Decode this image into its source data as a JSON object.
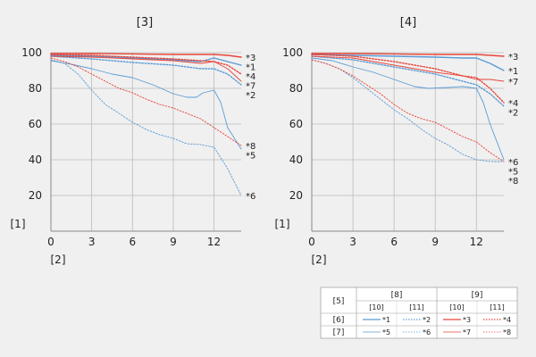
{
  "colors": {
    "blue": "#5b9bd5",
    "red": "#e8463a",
    "grid": "#bbbbbb",
    "axis": "#888888"
  },
  "chart_data": [
    {
      "type": "line",
      "title": "[3]",
      "xlabel": "[2]",
      "ylabel": "[1]",
      "xlim": [
        0,
        14
      ],
      "ylim": [
        0,
        100
      ],
      "xticks": [
        "0",
        "3",
        "6",
        "9",
        "12"
      ],
      "yticks": [
        "20",
        "40",
        "60",
        "80",
        "100"
      ],
      "grid": true,
      "series": [
        {
          "name": "*1",
          "color": "blue",
          "dash": false,
          "x": [
            0,
            3,
            6,
            9,
            11,
            12,
            12.5,
            14
          ],
          "y": [
            98.5,
            98,
            97,
            96,
            95,
            97,
            96,
            93
          ]
        },
        {
          "name": "*2",
          "color": "blue",
          "dash": true,
          "x": [
            0,
            3,
            6,
            9,
            11,
            12,
            13,
            14
          ],
          "y": [
            98,
            96.5,
            94.5,
            93,
            91,
            91,
            88,
            82
          ]
        },
        {
          "name": "*3",
          "color": "red",
          "dash": false,
          "x": [
            0,
            3,
            6,
            9,
            12,
            13,
            14
          ],
          "y": [
            99.5,
            99.5,
            99.3,
            99,
            99,
            98.5,
            97.5
          ]
        },
        {
          "name": "*4",
          "color": "red",
          "dash": true,
          "x": [
            0,
            3,
            6,
            9,
            12,
            13,
            14
          ],
          "y": [
            99,
            98.5,
            97.5,
            96.5,
            95,
            93,
            88
          ]
        },
        {
          "name": "*5",
          "color": "blue",
          "dash": false,
          "x": [
            0,
            1.5,
            3,
            4.5,
            6,
            7.5,
            9,
            10,
            10.7,
            11.2,
            12,
            12.5,
            13,
            14
          ],
          "y": [
            95.5,
            93.5,
            91,
            88,
            86,
            82,
            77,
            75,
            75,
            77.5,
            79,
            72,
            58,
            46
          ]
        },
        {
          "name": "*6",
          "color": "blue",
          "dash": true,
          "x": [
            0,
            1,
            2,
            3,
            4,
            5,
            6,
            7,
            8,
            9,
            10,
            11,
            12,
            13,
            14
          ],
          "y": [
            96,
            94,
            88,
            79,
            71,
            66,
            61,
            57,
            54,
            52,
            49,
            48.5,
            47,
            35,
            20
          ]
        },
        {
          "name": "*7",
          "color": "red",
          "dash": false,
          "x": [
            0,
            3,
            6,
            9,
            11,
            12,
            13,
            14
          ],
          "y": [
            98,
            97.5,
            96.5,
            95.5,
            94,
            95,
            91,
            84
          ]
        },
        {
          "name": "*8",
          "color": "red",
          "dash": true,
          "x": [
            0,
            1,
            2,
            3,
            4,
            5,
            6,
            7,
            8,
            9,
            10,
            11,
            12,
            13,
            14
          ],
          "y": [
            97,
            95,
            92,
            88,
            84,
            80,
            77.5,
            74,
            71,
            69,
            66,
            63,
            58,
            53,
            48
          ]
        }
      ],
      "end_labels": [
        "*3",
        "*1",
        "*4",
        "*7",
        "*2",
        "*8",
        "*5",
        "*6"
      ]
    },
    {
      "type": "line",
      "title": "[4]",
      "xlabel": "[2]",
      "ylabel": "[1]",
      "xlim": [
        0,
        14
      ],
      "ylim": [
        0,
        100
      ],
      "xticks": [
        "0",
        "3",
        "6",
        "9",
        "12"
      ],
      "yticks": [
        "20",
        "40",
        "60",
        "80",
        "100"
      ],
      "grid": true,
      "series": [
        {
          "name": "*1",
          "color": "blue",
          "dash": false,
          "x": [
            0,
            3,
            6,
            9,
            11,
            12,
            13,
            14
          ],
          "y": [
            99,
            98.5,
            98,
            97.5,
            97,
            97,
            94,
            90
          ]
        },
        {
          "name": "*2",
          "color": "blue",
          "dash": true,
          "x": [
            0,
            3,
            6,
            9,
            11,
            12,
            13,
            14
          ],
          "y": [
            98,
            96,
            92,
            88,
            84,
            82,
            77,
            70
          ]
        },
        {
          "name": "*3",
          "color": "red",
          "dash": false,
          "x": [
            0,
            3,
            6,
            9,
            12,
            13,
            14
          ],
          "y": [
            99.5,
            99.5,
            99.3,
            99,
            99,
            98.5,
            98
          ]
        },
        {
          "name": "*4",
          "color": "red",
          "dash": true,
          "x": [
            0,
            3,
            6,
            9,
            11,
            12,
            13,
            14
          ],
          "y": [
            99,
            98,
            95,
            91,
            87,
            86,
            80,
            72
          ]
        },
        {
          "name": "*5",
          "color": "blue",
          "dash": false,
          "x": [
            0,
            1.5,
            3,
            4.5,
            6,
            7.5,
            8.5,
            10,
            11,
            12,
            12.5,
            13,
            14
          ],
          "y": [
            97,
            95.5,
            92,
            89,
            85,
            81,
            80,
            80.5,
            81,
            80,
            72,
            60,
            40
          ]
        },
        {
          "name": "*6",
          "color": "blue",
          "dash": true,
          "x": [
            0,
            1,
            2,
            3,
            4,
            5,
            6,
            7,
            8,
            9,
            10,
            11,
            12,
            13,
            14
          ],
          "y": [
            96,
            94,
            91,
            86,
            80,
            74,
            68,
            63,
            57,
            52,
            48,
            43,
            40,
            39,
            39
          ]
        },
        {
          "name": "*7",
          "color": "red",
          "dash": false,
          "x": [
            0,
            3,
            6,
            9,
            11,
            12,
            13,
            14
          ],
          "y": [
            98,
            97,
            93,
            89,
            87,
            85,
            85,
            84
          ]
        },
        {
          "name": "*8",
          "color": "red",
          "dash": true,
          "x": [
            0,
            1,
            2,
            3,
            4,
            5,
            6,
            7,
            8,
            9,
            10,
            11,
            12,
            13,
            14
          ],
          "y": [
            96,
            94,
            91,
            87,
            82,
            77,
            71,
            66,
            63,
            61,
            57,
            53,
            50,
            44,
            39
          ]
        }
      ],
      "end_labels": [
        "*3",
        "*1",
        "*7",
        "*4",
        "*2",
        "*6",
        "*5",
        "*8"
      ]
    }
  ],
  "legend": {
    "corner": "[5]",
    "col_groups": [
      "[8]",
      "[9]"
    ],
    "sub_headers": [
      "[10]",
      "[11]",
      "[10]",
      "[11]"
    ],
    "rows": [
      {
        "label": "[6]",
        "items": [
          "*1",
          "*2",
          "*3",
          "*4"
        ]
      },
      {
        "label": "[7]",
        "items": [
          "*5",
          "*6",
          "*7",
          "*8"
        ]
      }
    ]
  }
}
